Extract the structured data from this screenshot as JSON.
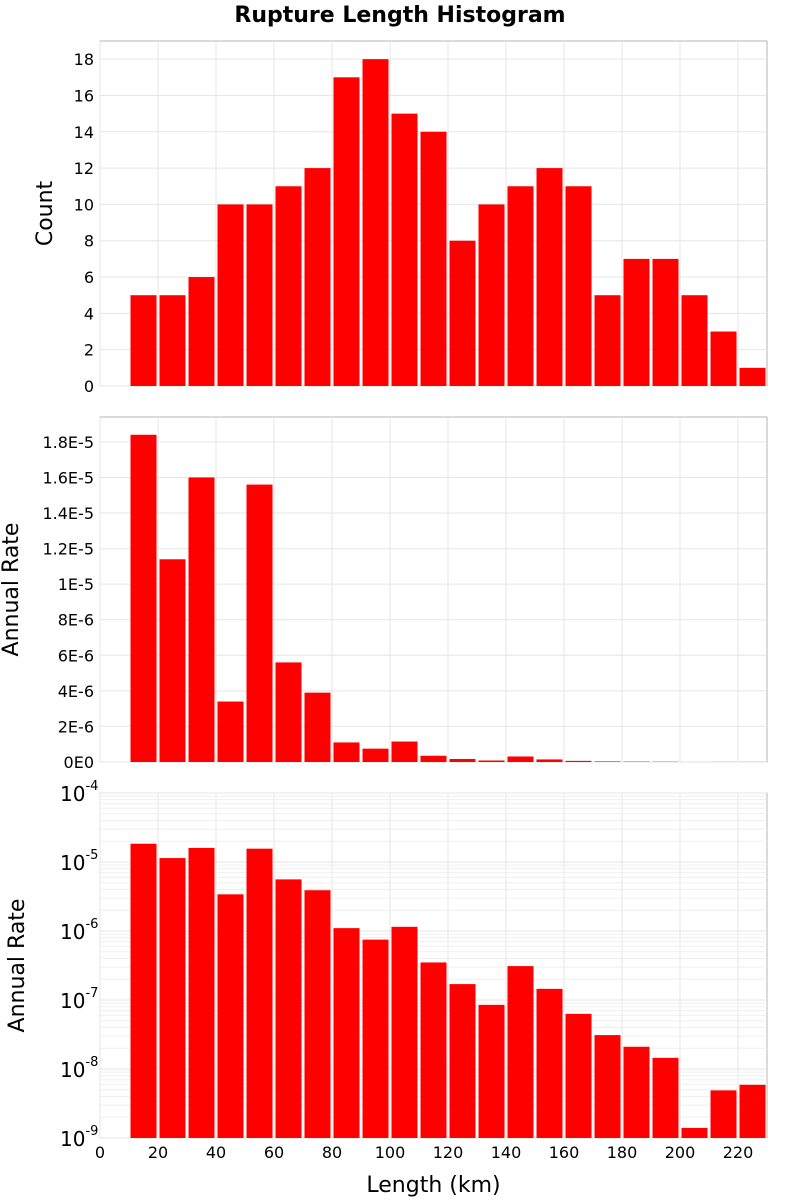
{
  "chart_data": [
    {
      "type": "bar",
      "title": "Rupture Length Histogram",
      "xlabel": "",
      "ylabel": "Count",
      "bin_width": 10,
      "bin_starts": [
        10,
        20,
        30,
        40,
        50,
        60,
        70,
        80,
        90,
        100,
        110,
        120,
        130,
        140,
        150,
        160,
        170,
        180,
        190,
        200,
        210,
        220
      ],
      "values": [
        5,
        5,
        6,
        10,
        10,
        11,
        12,
        17,
        18,
        15,
        14,
        8,
        10,
        11,
        12,
        11,
        5,
        7,
        7,
        5,
        3,
        1
      ],
      "xlim": [
        0,
        230
      ],
      "ylim": [
        0,
        19
      ],
      "yticks": [
        0,
        2,
        4,
        6,
        8,
        10,
        12,
        14,
        16,
        18
      ],
      "ytick_labels": [
        "0",
        "2",
        "4",
        "6",
        "8",
        "10",
        "12",
        "14",
        "16",
        "18"
      ],
      "color": "#ff0000",
      "grid": true
    },
    {
      "type": "bar",
      "xlabel": "",
      "ylabel": "Annual Rate",
      "bin_width": 10,
      "bin_starts": [
        10,
        20,
        30,
        40,
        50,
        60,
        70,
        80,
        90,
        100,
        110,
        120,
        130,
        140,
        150,
        160,
        170,
        180,
        190,
        200,
        210,
        220
      ],
      "values": [
        1.84e-05,
        1.14e-05,
        1.6e-05,
        3.4e-06,
        1.56e-05,
        5.6e-06,
        3.9e-06,
        1.1e-06,
        7.5e-07,
        1.15e-06,
        3.5e-07,
        1.7e-07,
        8.5e-08,
        3.1e-07,
        1.45e-07,
        6.3e-08,
        3.1e-08,
        2.1e-08,
        1.45e-08,
        1.4e-09,
        4.9e-09,
        5.9e-09
      ],
      "xlim": [
        0,
        230
      ],
      "ylim": [
        0,
        1.94e-05
      ],
      "yticks": [
        0,
        2e-06,
        4e-06,
        6e-06,
        8e-06,
        1e-05,
        1.2e-05,
        1.4e-05,
        1.6e-05,
        1.8e-05
      ],
      "ytick_labels": [
        "0E0",
        "2E-6",
        "4E-6",
        "6E-6",
        "8E-6",
        "1E-5",
        "1.2E-5",
        "1.4E-5",
        "1.6E-5",
        "1.8E-5"
      ],
      "color": "#ff0000",
      "grid": true
    },
    {
      "type": "bar",
      "xlabel": "Length (km)",
      "ylabel": "Annual Rate",
      "yscale": "log",
      "bin_width": 10,
      "bin_starts": [
        10,
        20,
        30,
        40,
        50,
        60,
        70,
        80,
        90,
        100,
        110,
        120,
        130,
        140,
        150,
        160,
        170,
        180,
        190,
        200,
        210,
        220
      ],
      "values": [
        1.84e-05,
        1.14e-05,
        1.6e-05,
        3.4e-06,
        1.56e-05,
        5.6e-06,
        3.9e-06,
        1.1e-06,
        7.5e-07,
        1.15e-06,
        3.5e-07,
        1.7e-07,
        8.5e-08,
        3.1e-07,
        1.45e-07,
        6.3e-08,
        3.1e-08,
        2.1e-08,
        1.45e-08,
        1.4e-09,
        4.9e-09,
        5.9e-09
      ],
      "xlim": [
        0,
        230
      ],
      "ylim": [
        1e-09,
        0.0001
      ],
      "xticks": [
        0,
        20,
        40,
        60,
        80,
        100,
        120,
        140,
        160,
        180,
        200,
        220
      ],
      "xtick_labels": [
        "0",
        "20",
        "40",
        "60",
        "80",
        "100",
        "120",
        "140",
        "160",
        "180",
        "200",
        "220"
      ],
      "yticks": [
        1e-09,
        1e-08,
        1e-07,
        1e-06,
        1e-05,
        0.0001
      ],
      "ytick_base": "10",
      "ytick_exponents": [
        "-9",
        "-8",
        "-7",
        "-6",
        "-5",
        "-4"
      ],
      "color": "#ff0000",
      "grid": true
    }
  ]
}
